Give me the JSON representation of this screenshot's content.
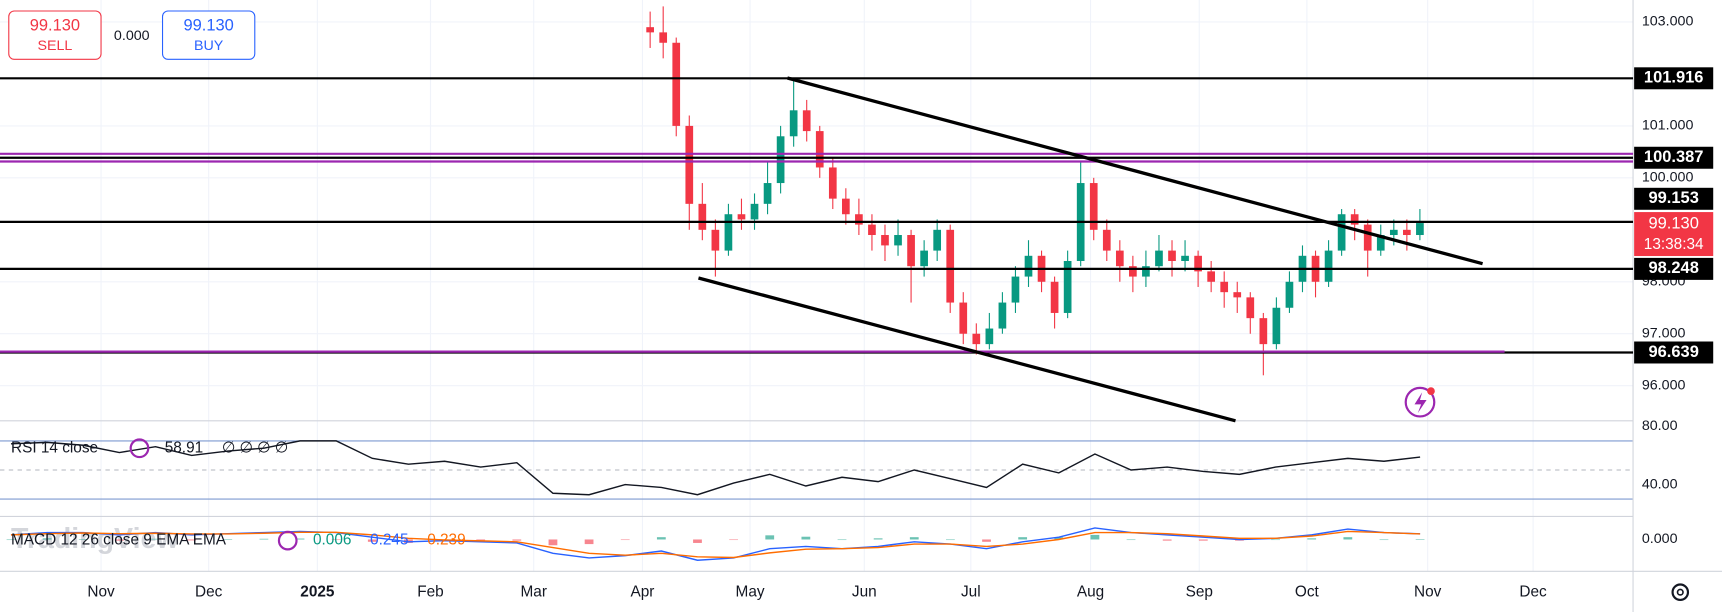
{
  "chart_data": {
    "type": "candlestick",
    "ohlc": [
      [
        102.9,
        103.2,
        102.5,
        102.8
      ],
      [
        102.8,
        103.3,
        102.3,
        102.6
      ],
      [
        102.6,
        102.7,
        100.8,
        101.0
      ],
      [
        101.0,
        101.2,
        99.0,
        99.5
      ],
      [
        99.5,
        99.9,
        98.8,
        99.0
      ],
      [
        99.0,
        99.2,
        98.1,
        98.6
      ],
      [
        98.6,
        99.5,
        98.5,
        99.3
      ],
      [
        99.3,
        99.6,
        99.0,
        99.2
      ],
      [
        99.2,
        99.7,
        99.0,
        99.5
      ],
      [
        99.5,
        100.3,
        99.3,
        99.9
      ],
      [
        99.9,
        101.0,
        99.7,
        100.8
      ],
      [
        100.8,
        101.9,
        100.6,
        101.3
      ],
      [
        101.3,
        101.5,
        100.7,
        100.9
      ],
      [
        100.9,
        101.0,
        100.0,
        100.2
      ],
      [
        100.2,
        100.4,
        99.4,
        99.6
      ],
      [
        99.6,
        99.8,
        99.1,
        99.3
      ],
      [
        99.3,
        99.6,
        98.9,
        99.1
      ],
      [
        99.1,
        99.3,
        98.6,
        98.9
      ],
      [
        98.9,
        99.1,
        98.4,
        98.7
      ],
      [
        98.7,
        99.2,
        98.5,
        98.9
      ],
      [
        98.9,
        99.0,
        97.6,
        98.3
      ],
      [
        98.3,
        98.8,
        98.1,
        98.6
      ],
      [
        98.6,
        99.2,
        98.4,
        99.0
      ],
      [
        99.0,
        99.1,
        97.4,
        97.6
      ],
      [
        97.6,
        97.8,
        96.8,
        97.0
      ],
      [
        97.0,
        97.2,
        96.6,
        96.8
      ],
      [
        96.8,
        97.4,
        96.7,
        97.1
      ],
      [
        97.1,
        97.8,
        97.0,
        97.6
      ],
      [
        97.6,
        98.3,
        97.4,
        98.1
      ],
      [
        98.1,
        98.8,
        97.9,
        98.5
      ],
      [
        98.5,
        98.6,
        97.8,
        98.0
      ],
      [
        98.0,
        98.1,
        97.1,
        97.4
      ],
      [
        97.4,
        98.6,
        97.3,
        98.4
      ],
      [
        98.4,
        100.3,
        98.3,
        99.9
      ],
      [
        99.9,
        100.0,
        98.8,
        99.0
      ],
      [
        99.0,
        99.2,
        98.4,
        98.6
      ],
      [
        98.6,
        98.8,
        98.0,
        98.3
      ],
      [
        98.3,
        98.5,
        97.8,
        98.1
      ],
      [
        98.1,
        98.6,
        97.9,
        98.3
      ],
      [
        98.3,
        98.9,
        98.2,
        98.6
      ],
      [
        98.6,
        98.8,
        98.1,
        98.4
      ],
      [
        98.4,
        98.8,
        98.2,
        98.5
      ],
      [
        98.5,
        98.6,
        97.9,
        98.2
      ],
      [
        98.2,
        98.4,
        97.8,
        98.0
      ],
      [
        98.0,
        98.2,
        97.5,
        97.8
      ],
      [
        97.8,
        98.0,
        97.4,
        97.7
      ],
      [
        97.7,
        97.8,
        97.0,
        97.3
      ],
      [
        97.3,
        97.4,
        96.2,
        96.8
      ],
      [
        96.8,
        97.7,
        96.7,
        97.5
      ],
      [
        97.5,
        98.2,
        97.4,
        98.0
      ],
      [
        98.0,
        98.7,
        97.8,
        98.5
      ],
      [
        98.5,
        98.6,
        97.7,
        98.0
      ],
      [
        98.0,
        98.8,
        97.9,
        98.6
      ],
      [
        98.6,
        99.4,
        98.5,
        99.3
      ],
      [
        99.3,
        99.4,
        98.8,
        99.1
      ],
      [
        99.1,
        99.2,
        98.1,
        98.6
      ],
      [
        98.6,
        99.1,
        98.5,
        98.9
      ],
      [
        98.9,
        99.2,
        98.7,
        99.0
      ],
      [
        99.0,
        99.2,
        98.6,
        98.9
      ],
      [
        98.9,
        99.4,
        98.8,
        99.13
      ]
    ],
    "up_color": "#089981",
    "down_color": "#f23645",
    "ylim": [
      95.324,
      103.423
    ],
    "yticks": [
      {
        "value": 103,
        "label": "103.000"
      },
      {
        "value": 101,
        "label": "101.000"
      },
      {
        "value": 100,
        "label": "100.000"
      },
      {
        "value": 98,
        "label": "98.000"
      },
      {
        "value": 97,
        "label": "97.000"
      },
      {
        "value": 96,
        "label": "96.000"
      }
    ],
    "levels": [
      101.916,
      100.387,
      99.153,
      98.248,
      96.639
    ],
    "last_price": {
      "value": 99.13,
      "label": "99.130"
    },
    "countdown": "13:38:34",
    "time_labels": [
      "Nov",
      "Dec",
      "2025",
      "Feb",
      "Mar",
      "Apr",
      "May",
      "Jun",
      "Jul",
      "Aug",
      "Sep",
      "Oct",
      "Nov",
      "Dec"
    ],
    "rsi": {
      "label": "RSI 14 close",
      "placeholders": "∅ ∅ ∅ ∅",
      "color": "#131722",
      "values": [
        68,
        69,
        67,
        62,
        66,
        60,
        63,
        65,
        70,
        70,
        58,
        54,
        56,
        52,
        55,
        34,
        33,
        40,
        38,
        33,
        41,
        47,
        39,
        45,
        42,
        50,
        44,
        38,
        54,
        48,
        61,
        50,
        52,
        49,
        47,
        52,
        55,
        58,
        56,
        58.91
      ],
      "ylim": [
        18.1,
        83.8
      ],
      "yticks": [
        {
          "value": 80,
          "label": "80.00"
        },
        {
          "value": 40,
          "label": "40.00"
        }
      ],
      "bands": [
        70,
        50,
        30
      ]
    },
    "macd": {
      "label": "MACD 12 26 close 9 EMA EMA",
      "ylim": [
        -1.0,
        1.0
      ],
      "yticks": [
        {
          "value": 0,
          "label": "0.000"
        }
      ],
      "histogram": [
        0,
        0.05,
        0.02,
        -0.05,
        0.03,
        -0.04,
        0.01,
        0.03,
        0.04,
        -0.01,
        -0.1,
        -0.15,
        -0.03,
        -0.04,
        -0.05,
        -0.25,
        -0.2,
        -0.02,
        0.1,
        -0.15,
        -0.02,
        0.18,
        0.12,
        0,
        0.05,
        0.1,
        0,
        -0.1,
        0.1,
        0.1,
        0.2,
        0,
        -0.05,
        -0.05,
        -0.05,
        0,
        0.05,
        0.1,
        0,
        0.006
      ],
      "macd": [
        0.2,
        0.3,
        0.3,
        0.2,
        0.3,
        0.2,
        0.25,
        0.3,
        0.35,
        0.3,
        0.1,
        -0.1,
        -0.05,
        -0.1,
        -0.15,
        -0.6,
        -0.8,
        -0.7,
        -0.5,
        -0.9,
        -0.8,
        -0.4,
        -0.3,
        -0.4,
        -0.3,
        -0.1,
        -0.2,
        -0.4,
        -0.1,
        0.1,
        0.5,
        0.3,
        0.2,
        0.1,
        0.0,
        0.05,
        0.2,
        0.45,
        0.3,
        0.245
      ],
      "signal": [
        0.2,
        0.25,
        0.28,
        0.25,
        0.27,
        0.24,
        0.24,
        0.27,
        0.31,
        0.31,
        0.2,
        0.05,
        -0.02,
        -0.06,
        -0.1,
        -0.35,
        -0.6,
        -0.68,
        -0.6,
        -0.75,
        -0.78,
        -0.58,
        -0.42,
        -0.4,
        -0.35,
        -0.2,
        -0.2,
        -0.3,
        -0.2,
        0.0,
        0.3,
        0.3,
        0.25,
        0.15,
        0.05,
        0.05,
        0.15,
        0.35,
        0.3,
        0.239
      ],
      "colors": {
        "histogram": "#089981",
        "macd": "#2962ff",
        "signal": "#ff6d00"
      }
    }
  },
  "order_panel": {
    "sell_price": "99.130",
    "sell_label": "SELL",
    "spread": "0.000",
    "buy_price": "99.130",
    "buy_label": "BUY"
  },
  "watermark": "TradingView"
}
